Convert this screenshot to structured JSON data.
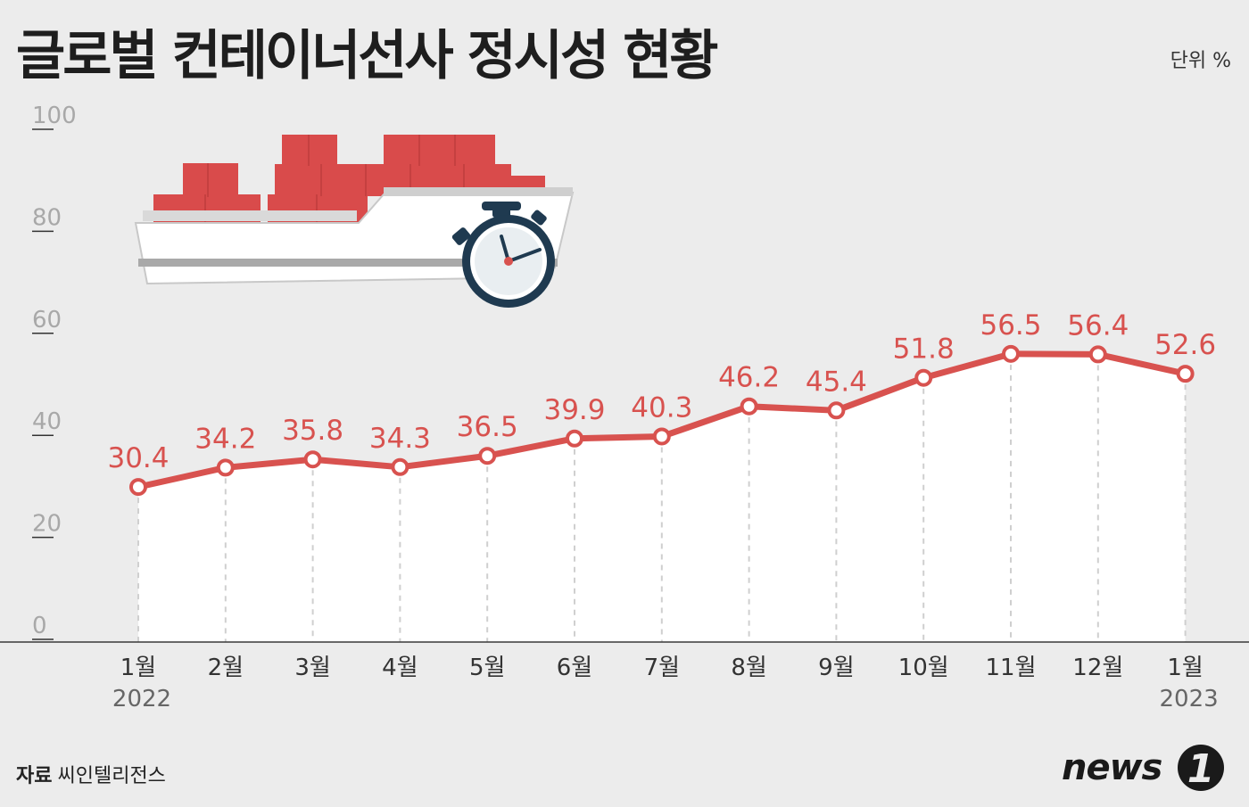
{
  "title": "글로벌 컨테이너선사 정시성 현황",
  "unit": "단위 %",
  "source": {
    "label": "자료",
    "name": "씨인텔리전스"
  },
  "logo": {
    "text": "news",
    "mark": "1"
  },
  "colors": {
    "line": "#d8524f",
    "background": "#ececec",
    "plotFill": "#ffffff"
  },
  "icons": [
    "container-ship-icon",
    "stopwatch-icon"
  ],
  "chart_data": {
    "type": "line",
    "categories": [
      "1월",
      "2월",
      "3월",
      "4월",
      "5월",
      "6월",
      "7월",
      "8월",
      "9월",
      "10월",
      "11월",
      "12월",
      "1월"
    ],
    "years": [
      "2022",
      "",
      "",
      "",
      "",
      "",
      "",
      "",
      "",
      "",
      "",
      "",
      "2023"
    ],
    "values": [
      30.4,
      34.2,
      35.8,
      34.3,
      36.5,
      39.9,
      40.3,
      46.2,
      45.4,
      51.8,
      56.5,
      56.4,
      52.6
    ],
    "value_labels": [
      "30.4",
      "34.2",
      "35.8",
      "34.3",
      "36.5",
      "39.9",
      "40.3",
      "46.2",
      "45.4",
      "51.8",
      "56.5",
      "56.4",
      "52.6"
    ],
    "yticks": [
      "0",
      "20",
      "40",
      "60",
      "80",
      "100"
    ],
    "ylim": [
      0,
      100
    ],
    "grid": false
  }
}
